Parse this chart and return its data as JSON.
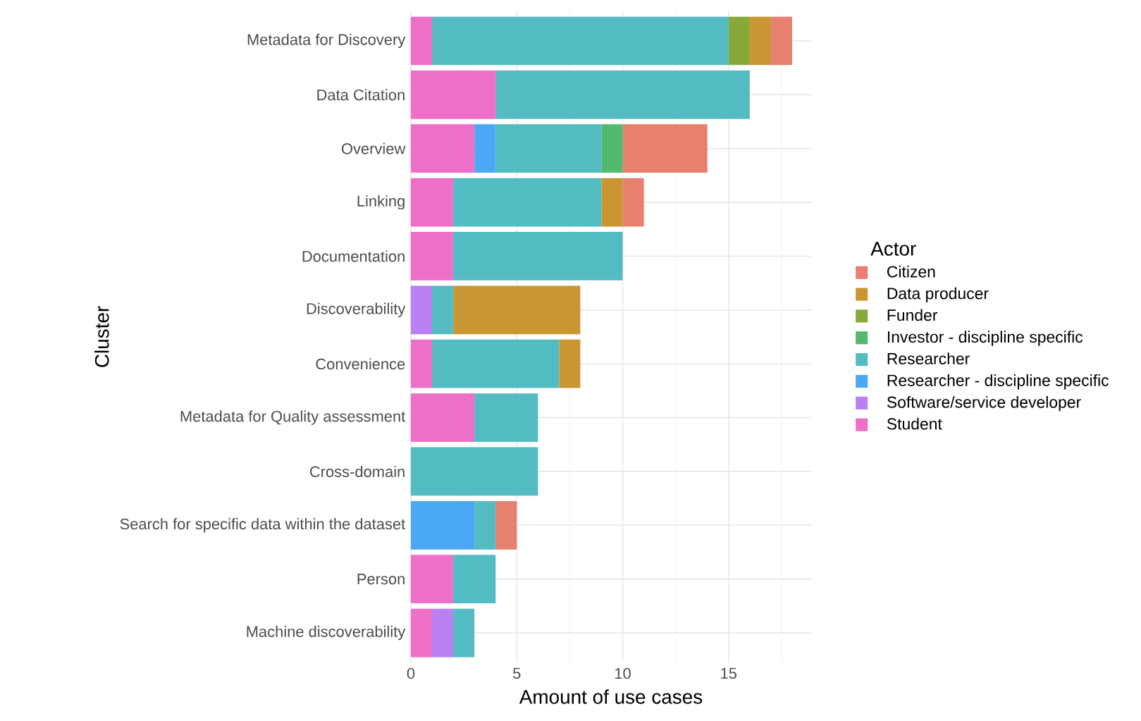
{
  "chart_data": {
    "type": "bar",
    "orientation": "horizontal",
    "stacked": true,
    "xlabel": "Amount of use cases",
    "ylabel": "Cluster",
    "legend_title": "Actor",
    "categories": [
      "Metadata for Discovery",
      "Data Citation",
      "Overview",
      "Linking",
      "Documentation",
      "Discoverability",
      "Convenience",
      "Metadata for Quality assessment",
      "Cross-domain",
      "Search for specific data within the dataset",
      "Person",
      "Machine discoverability"
    ],
    "series": [
      {
        "name": "Student",
        "color": "#ee6fc7",
        "values": [
          1,
          4,
          3,
          2,
          2,
          0,
          1,
          3,
          0,
          0,
          2,
          1
        ]
      },
      {
        "name": "Software/service developer",
        "color": "#b97ff3",
        "values": [
          0,
          0,
          0,
          0,
          0,
          1,
          0,
          0,
          0,
          0,
          0,
          1
        ]
      },
      {
        "name": "Researcher - discipline specific",
        "color": "#4aa8f6",
        "values": [
          0,
          0,
          1,
          0,
          0,
          0,
          0,
          0,
          0,
          3,
          0,
          0
        ]
      },
      {
        "name": "Researcher",
        "color": "#53bbc2",
        "values": [
          14,
          12,
          5,
          7,
          8,
          1,
          6,
          3,
          6,
          1,
          2,
          1
        ]
      },
      {
        "name": "Investor - discipline specific",
        "color": "#52b96f",
        "values": [
          0,
          0,
          1,
          0,
          0,
          0,
          0,
          0,
          0,
          0,
          0,
          0
        ]
      },
      {
        "name": "Funder",
        "color": "#86a93a",
        "values": [
          1,
          0,
          0,
          0,
          0,
          0,
          0,
          0,
          0,
          0,
          0,
          0
        ]
      },
      {
        "name": "Data producer",
        "color": "#c99632",
        "values": [
          1,
          0,
          0,
          1,
          0,
          6,
          1,
          0,
          0,
          0,
          0,
          0
        ]
      },
      {
        "name": "Citizen",
        "color": "#e8806f",
        "values": [
          1,
          0,
          4,
          1,
          0,
          0,
          0,
          0,
          0,
          1,
          0,
          0
        ]
      }
    ],
    "xlim": [
      0,
      18.9
    ],
    "xticks": [
      0,
      5,
      10,
      15
    ],
    "grid": true,
    "legend": "right"
  }
}
